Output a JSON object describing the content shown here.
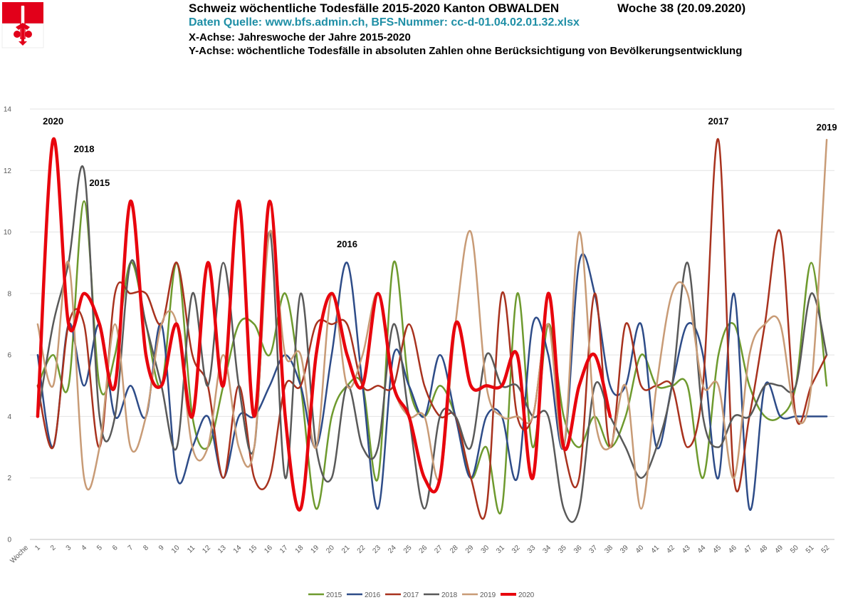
{
  "header": {
    "title": "Schweiz wöchentliche Todesfälle 2015-2020 Kanton OBWALDEN",
    "week": "Woche 38 (20.09.2020)",
    "source": "Daten Quelle: www.bfs.admin.ch,   BFS-Nummer: cc-d-01.04.02.01.32.xlsx",
    "x_axis_desc": "X-Achse:  Jahreswoche der Jahre 2015-2020",
    "y_axis_desc": "Y-Achse:  wöchentliche Todesfälle in absoluten Zahlen ohne Berücksichtigung von Bevölkerungsentwicklung"
  },
  "logo": {
    "icon": "canton-obwalden-coat-of-arms-icon",
    "colors": [
      "#e2001a",
      "#ffffff"
    ]
  },
  "chart_data": {
    "type": "line",
    "smooth": true,
    "x_axis_label": "Woche",
    "ylim": [
      0,
      14
    ],
    "y_ticks": [
      0,
      2,
      4,
      6,
      8,
      10,
      12,
      14
    ],
    "gridlines": "horizontal",
    "legend_position": "bottom",
    "x": [
      1,
      2,
      3,
      4,
      5,
      6,
      7,
      8,
      9,
      10,
      11,
      12,
      13,
      14,
      15,
      16,
      17,
      18,
      19,
      20,
      21,
      22,
      23,
      24,
      25,
      26,
      27,
      28,
      29,
      30,
      31,
      32,
      33,
      34,
      35,
      36,
      37,
      38,
      39,
      40,
      41,
      42,
      43,
      44,
      45,
      46,
      47,
      48,
      49,
      50,
      51,
      52
    ],
    "series": [
      {
        "name": "2015",
        "color": "#6e9a2e",
        "width": 2.5,
        "values": [
          5,
          6,
          5,
          11,
          5,
          6,
          9,
          7,
          5,
          9,
          4,
          3,
          5,
          7,
          7,
          6,
          8,
          5,
          1,
          4,
          5,
          5,
          2,
          9,
          5,
          4,
          5,
          4,
          2,
          3,
          1,
          8,
          3,
          7,
          4,
          3,
          4,
          3,
          4,
          6,
          5,
          5,
          5,
          2,
          6,
          7,
          5,
          4,
          4,
          5,
          9,
          5
        ]
      },
      {
        "name": "2016",
        "color": "#2e4c88",
        "width": 2.5,
        "values": [
          6,
          3,
          7,
          5,
          7,
          4,
          5,
          4,
          7,
          2,
          3,
          4,
          2,
          4,
          4,
          5,
          6,
          5,
          3,
          6,
          9,
          5,
          1,
          6,
          5,
          4,
          6,
          4,
          2,
          4,
          4,
          2,
          7,
          6,
          3,
          9,
          8,
          5,
          5,
          7,
          3,
          5,
          7,
          6,
          2,
          8,
          1,
          5,
          4,
          4,
          4,
          4
        ]
      },
      {
        "name": "2017",
        "color": "#a8321e",
        "width": 2.5,
        "values": [
          5,
          3,
          7,
          7,
          3,
          8,
          8,
          8,
          7,
          9,
          6,
          5,
          2,
          5,
          2,
          2,
          5,
          5,
          7,
          7,
          7,
          5,
          5,
          5,
          7,
          5,
          4,
          4,
          2,
          1,
          8,
          4,
          4,
          7,
          3,
          2,
          8,
          3,
          7,
          5,
          5,
          5,
          3,
          5,
          13,
          2,
          4,
          7,
          10,
          4,
          5,
          6
        ]
      },
      {
        "name": "2018",
        "color": "#595959",
        "width": 2.5,
        "values": [
          4,
          7,
          9,
          12,
          4,
          4,
          9,
          7,
          5,
          3,
          8,
          5,
          9,
          5,
          3,
          10,
          2,
          8,
          3,
          2,
          5,
          3,
          3,
          7,
          4,
          1,
          4,
          4,
          3,
          6,
          5,
          5,
          4,
          4,
          1,
          1,
          5,
          4,
          3,
          2,
          3,
          5,
          9,
          4,
          3,
          4,
          4,
          5,
          5,
          5,
          8,
          6
        ]
      },
      {
        "name": "2019",
        "color": "#c89b76",
        "width": 2.5,
        "values": [
          7,
          5,
          9,
          2,
          3,
          7,
          3,
          4,
          7,
          7,
          3,
          3,
          6,
          3,
          3,
          10,
          6,
          6,
          3,
          8,
          5,
          6,
          8,
          5,
          4,
          4,
          2,
          7,
          10,
          5,
          4,
          4,
          4,
          7,
          3,
          10,
          4,
          3,
          5,
          1,
          5,
          8,
          8,
          5,
          5,
          2,
          6,
          7,
          7,
          4,
          5,
          13
        ]
      },
      {
        "name": "2020",
        "color": "#e8050d",
        "width": 4.5,
        "values": [
          4,
          13,
          7,
          8,
          7,
          5,
          11,
          6,
          5,
          7,
          4,
          9,
          5,
          11,
          4,
          11,
          4,
          1,
          6,
          8,
          6,
          5,
          8,
          5,
          4,
          2,
          2,
          7,
          5,
          5,
          5,
          6,
          2,
          8,
          3,
          5,
          6,
          4,
          null,
          null,
          null,
          null,
          null,
          null,
          null,
          null,
          null,
          null,
          null,
          null,
          null,
          null
        ]
      }
    ],
    "annotations": [
      {
        "text": "2020",
        "x": 2,
        "y": 13.5
      },
      {
        "text": "2018",
        "x": 4,
        "y": 12.6
      },
      {
        "text": "2015",
        "x": 5,
        "y": 11.5
      },
      {
        "text": "2016",
        "x": 21,
        "y": 9.5
      },
      {
        "text": "2017",
        "x": 45,
        "y": 13.5
      },
      {
        "text": "2019",
        "x": 52,
        "y": 13.3
      }
    ]
  }
}
